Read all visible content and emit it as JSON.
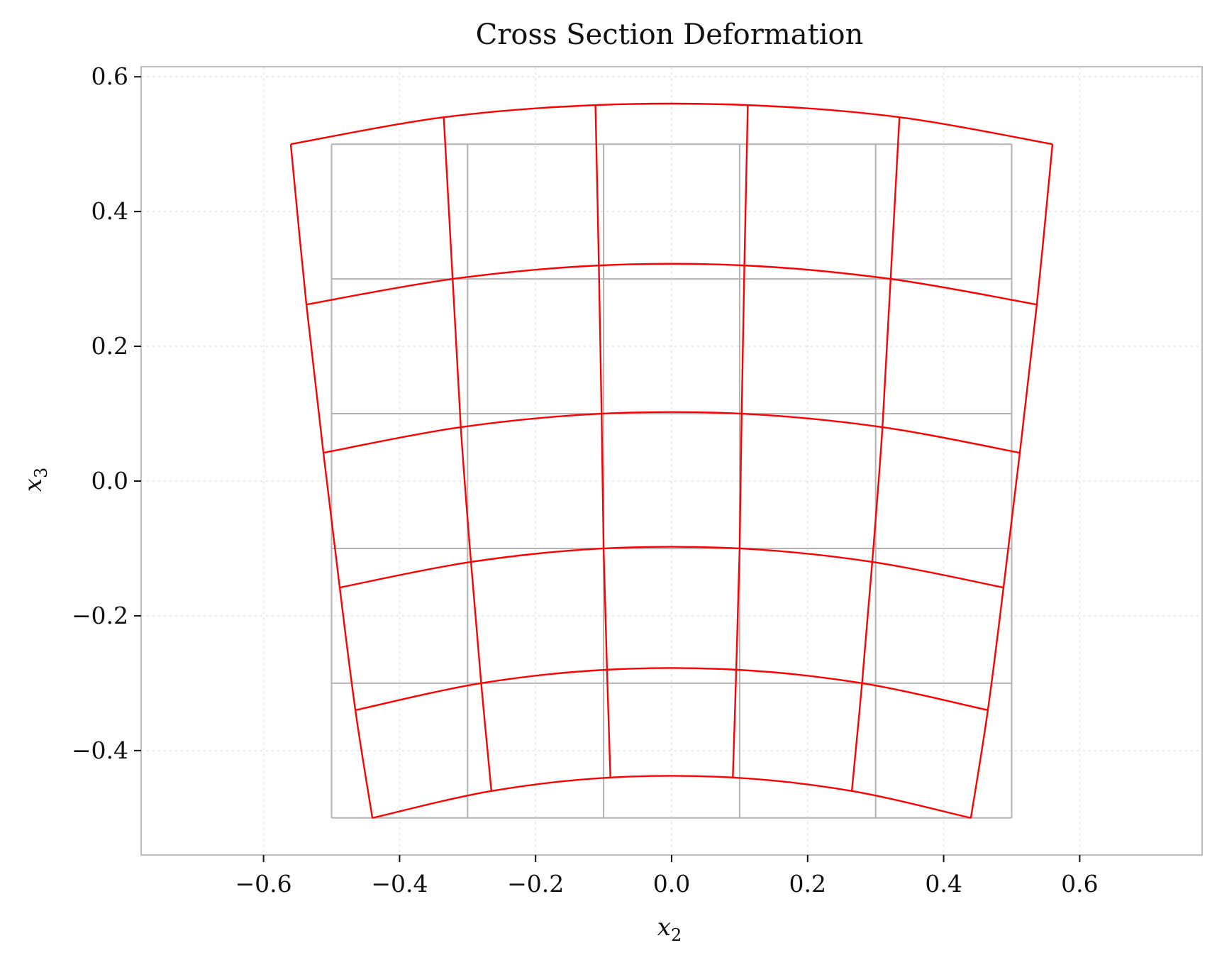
{
  "chart_data": {
    "type": "line",
    "title": "Cross Section Deformation",
    "xlabel": "x",
    "xlabel_sub": "2",
    "ylabel": "x",
    "ylabel_sub": "3",
    "xlim": [
      -0.78,
      0.78
    ],
    "ylim": [
      -0.555,
      0.615
    ],
    "xticks": [
      -0.6,
      -0.4,
      -0.2,
      0.0,
      0.2,
      0.4,
      0.6
    ],
    "xtick_labels": [
      "−0.6",
      "−0.4",
      "−0.2",
      "0.0",
      "0.2",
      "0.4",
      "0.6"
    ],
    "yticks": [
      -0.4,
      -0.2,
      0.0,
      0.2,
      0.4,
      0.6
    ],
    "ytick_labels": [
      "−0.4",
      "−0.2",
      "0.0",
      "0.2",
      "0.4",
      "0.6"
    ],
    "grid": true,
    "legend": "none",
    "series": [
      {
        "role": "undeformed",
        "color": "#b3b3b3",
        "x_nodes": [
          -0.5,
          -0.3,
          -0.1,
          0.1,
          0.3,
          0.5
        ],
        "y_nodes": [
          -0.5,
          -0.3,
          -0.1,
          0.1,
          0.3,
          0.5
        ]
      },
      {
        "role": "deformed",
        "color": "#ff0000",
        "rows": [
          [
            [
              -0.44,
              -0.5
            ],
            [
              -0.265,
              -0.46
            ],
            [
              -0.09,
              -0.44
            ],
            [
              0.09,
              -0.44
            ],
            [
              0.265,
              -0.46
            ],
            [
              0.44,
              -0.5
            ]
          ],
          [
            [
              -0.465,
              -0.34
            ],
            [
              -0.28,
              -0.3
            ],
            [
              -0.095,
              -0.28
            ],
            [
              0.095,
              -0.28
            ],
            [
              0.28,
              -0.3
            ],
            [
              0.465,
              -0.34
            ]
          ],
          [
            [
              -0.488,
              -0.158
            ],
            [
              -0.295,
              -0.12
            ],
            [
              -0.1,
              -0.1
            ],
            [
              0.1,
              -0.1
            ],
            [
              0.295,
              -0.12
            ],
            [
              0.488,
              -0.158
            ]
          ],
          [
            [
              -0.512,
              0.042
            ],
            [
              -0.31,
              0.08
            ],
            [
              -0.103,
              0.1
            ],
            [
              0.103,
              0.1
            ],
            [
              0.31,
              0.08
            ],
            [
              0.512,
              0.042
            ]
          ],
          [
            [
              -0.537,
              0.262
            ],
            [
              -0.322,
              0.3
            ],
            [
              -0.107,
              0.32
            ],
            [
              0.107,
              0.32
            ],
            [
              0.322,
              0.3
            ],
            [
              0.537,
              0.262
            ]
          ],
          [
            [
              -0.56,
              0.5
            ],
            [
              -0.335,
              0.54
            ],
            [
              -0.112,
              0.558
            ],
            [
              0.112,
              0.558
            ],
            [
              0.335,
              0.54
            ],
            [
              0.56,
              0.5
            ]
          ]
        ]
      }
    ]
  },
  "colors": {
    "deformed": "#ff0000",
    "undeformed": "#b3b3b3",
    "frame": "#bdbdbd",
    "grid": "#e2e2e2"
  }
}
